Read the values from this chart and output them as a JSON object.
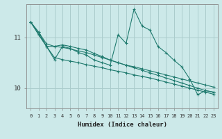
{
  "xlabel": "Humidex (Indice chaleur)",
  "xlim": [
    -0.5,
    23.5
  ],
  "ylim": [
    9.6,
    11.65
  ],
  "yticks": [
    10,
    11
  ],
  "xticks": [
    0,
    1,
    2,
    3,
    4,
    5,
    6,
    7,
    8,
    9,
    10,
    11,
    12,
    13,
    14,
    15,
    16,
    17,
    18,
    19,
    20,
    21,
    22,
    23
  ],
  "bg_color": "#cce9e9",
  "grid_color": "#aacccc",
  "line_color": "#1f7a6e",
  "lines": [
    [
      11.3,
      11.1,
      10.82,
      10.56,
      10.82,
      10.78,
      10.7,
      10.65,
      10.55,
      10.5,
      10.45,
      11.05,
      10.88,
      11.55,
      11.22,
      11.14,
      10.82,
      10.7,
      10.55,
      10.42,
      10.18,
      9.87,
      9.95,
      9.92
    ],
    [
      11.3,
      11.1,
      10.87,
      10.82,
      10.85,
      10.82,
      10.78,
      10.75,
      10.68,
      10.62,
      10.55,
      10.5,
      10.45,
      10.42,
      10.38,
      10.34,
      10.3,
      10.26,
      10.22,
      10.18,
      10.14,
      10.1,
      10.06,
      10.02
    ],
    [
      11.3,
      11.05,
      10.82,
      10.82,
      10.8,
      10.77,
      10.73,
      10.7,
      10.65,
      10.6,
      10.55,
      10.5,
      10.45,
      10.4,
      10.35,
      10.3,
      10.25,
      10.2,
      10.15,
      10.1,
      10.05,
      10.0,
      9.95,
      9.92
    ],
    [
      11.3,
      11.06,
      10.82,
      10.6,
      10.56,
      10.53,
      10.5,
      10.46,
      10.43,
      10.4,
      10.36,
      10.33,
      10.3,
      10.26,
      10.23,
      10.2,
      10.16,
      10.12,
      10.08,
      10.04,
      10.0,
      9.96,
      9.92,
      9.88
    ]
  ]
}
